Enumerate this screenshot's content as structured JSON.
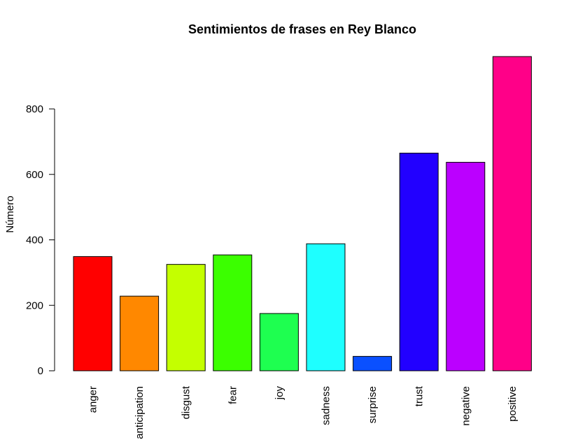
{
  "chart_data": {
    "type": "bar",
    "title": "Sentimientos de frases en Rey Blanco",
    "xlabel": "",
    "ylabel": "Número",
    "categories": [
      "anger",
      "anticipation",
      "disgust",
      "fear",
      "joy",
      "sadness",
      "surprise",
      "trust",
      "negative",
      "positive"
    ],
    "values": [
      349,
      228,
      325,
      354,
      175,
      388,
      44,
      665,
      637,
      960
    ],
    "colors": [
      "#FF0000",
      "#FF8800",
      "#C4FF00",
      "#3BFF00",
      "#1EFF50",
      "#1EFFFF",
      "#0A50FF",
      "#2200FF",
      "#BB00FF",
      "#FF0088"
    ],
    "yticks": [
      0,
      200,
      400,
      600,
      800
    ],
    "ylim": [
      0,
      960
    ],
    "grid": false,
    "legend": "none"
  }
}
